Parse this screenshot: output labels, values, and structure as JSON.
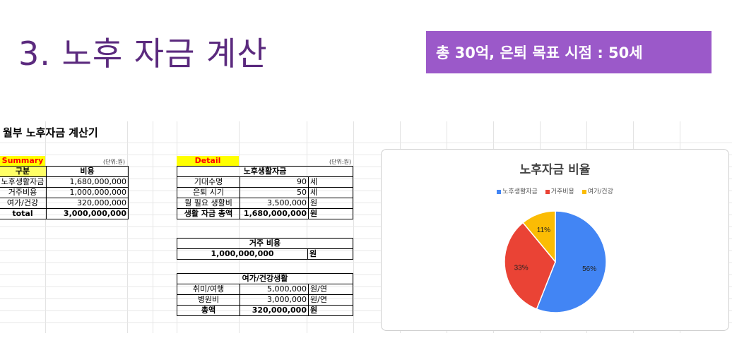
{
  "slide": {
    "title": "3. 노후 자금 계산",
    "goal": "총 30억, 은퇴 목표 시점 : 50세"
  },
  "sheet": {
    "title": "월부 노후자금 계산기",
    "summary": {
      "label": "Summary",
      "unit": "(단위:원)",
      "headers": [
        "구분",
        "비용"
      ],
      "rows": [
        {
          "name": "노후생활자금",
          "value": "1,680,000,000"
        },
        {
          "name": "거주비용",
          "value": "1,000,000,000"
        },
        {
          "name": "여가/건강",
          "value": "320,000,000"
        }
      ],
      "total": {
        "name": "total",
        "value": "3,000,000,000"
      }
    },
    "detail": {
      "label": "Detail",
      "unit": "(단위:원)",
      "living": {
        "title": "노후생활자금",
        "rows": [
          {
            "name": "기대수명",
            "value": "90",
            "unit": "세"
          },
          {
            "name": "은퇴 시기",
            "value": "50",
            "unit": "세"
          },
          {
            "name": "월 필요 생활비",
            "value": "3,500,000",
            "unit": "원"
          }
        ],
        "total": {
          "name": "생활 자금 총액",
          "value": "1,680,000,000",
          "unit": "원"
        }
      },
      "housing": {
        "title": "거주 비용",
        "value": "1,000,000,000",
        "unit": "원"
      },
      "leisure": {
        "title": "여가/건강생활",
        "rows": [
          {
            "name": "취미/여행",
            "value": "5,000,000",
            "unit": "원/연"
          },
          {
            "name": "병원비",
            "value": "3,000,000",
            "unit": "원/연"
          }
        ],
        "total": {
          "name": "총액",
          "value": "320,000,000",
          "unit": "원"
        }
      }
    }
  },
  "chart_data": {
    "type": "pie",
    "title": "노후자금 비율",
    "categories": [
      "노후생활자금",
      "거주비용",
      "여가/건강"
    ],
    "values": [
      56,
      33,
      11
    ],
    "labels": [
      "56%",
      "33%",
      "11%"
    ],
    "colors": [
      "#4285f4",
      "#ea4335",
      "#fbbc04"
    ],
    "legend_position": "top"
  }
}
